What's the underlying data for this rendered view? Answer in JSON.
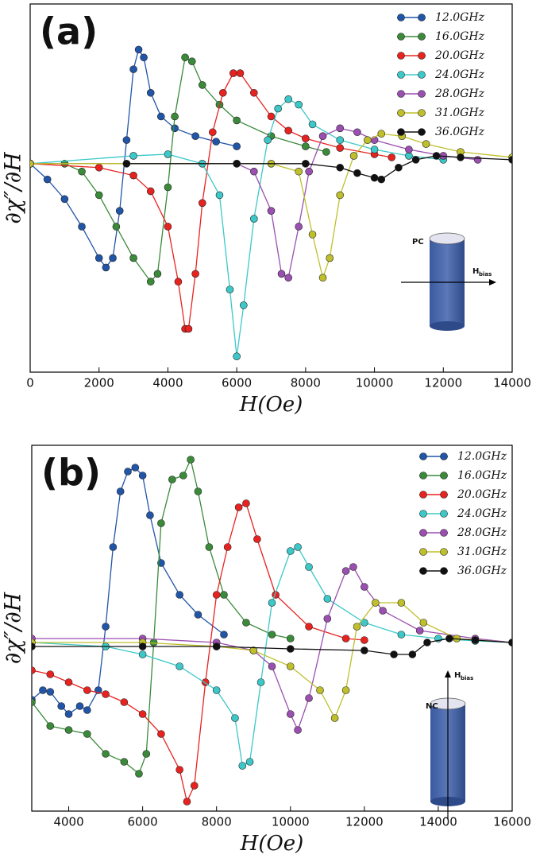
{
  "chart_data": [
    {
      "type": "line",
      "panel_label": "(a)",
      "xlabel": "H(Oe)",
      "ylabel": "∂χ″/∂H",
      "xlim": [
        0,
        14000
      ],
      "xticks": [
        0,
        2000,
        4000,
        6000,
        8000,
        10000,
        12000,
        14000
      ],
      "ylim": [
        -2.65,
        2.03
      ],
      "legend": "upper right",
      "inset_label": "PC",
      "field_label": "H",
      "field_subscript": "bias",
      "series": [
        {
          "name": "12.0GHz",
          "color": "#2155a8",
          "x": [
            0,
            500,
            1000,
            1500,
            2000,
            2200,
            2400,
            2600,
            2800,
            3000,
            3150,
            3300,
            3500,
            3800,
            4200,
            4800,
            5400,
            6000
          ],
          "values": [
            0,
            -0.2,
            -0.45,
            -0.8,
            -1.2,
            -1.32,
            -1.2,
            -0.6,
            0.3,
            1.2,
            1.45,
            1.35,
            0.9,
            0.6,
            0.45,
            0.35,
            0.28,
            0.22
          ]
        },
        {
          "name": "16.0GHz",
          "color": "#3a8a3a",
          "x": [
            0,
            1000,
            1500,
            2000,
            2500,
            3000,
            3500,
            3700,
            4000,
            4200,
            4500,
            4700,
            5000,
            5500,
            6000,
            7000,
            8000,
            8600
          ],
          "values": [
            0,
            0,
            -0.1,
            -0.4,
            -0.8,
            -1.2,
            -1.5,
            -1.4,
            -0.3,
            0.6,
            1.35,
            1.3,
            1.0,
            0.75,
            0.55,
            0.35,
            0.22,
            0.15
          ]
        },
        {
          "name": "20.0GHz",
          "color": "#e8231f",
          "x": [
            0,
            2000,
            3000,
            3500,
            4000,
            4300,
            4500,
            4600,
            4800,
            5000,
            5300,
            5600,
            5900,
            6100,
            6500,
            7000,
            7500,
            8000,
            9000,
            10000,
            10500
          ],
          "values": [
            0,
            -0.05,
            -0.15,
            -0.35,
            -0.8,
            -1.5,
            -2.1,
            -2.1,
            -1.4,
            -0.5,
            0.4,
            0.9,
            1.15,
            1.15,
            0.9,
            0.6,
            0.42,
            0.32,
            0.2,
            0.12,
            0.08
          ]
        },
        {
          "name": "24.0GHz",
          "color": "#3cc8c8",
          "x": [
            0,
            3000,
            4000,
            5000,
            5500,
            5800,
            6000,
            6200,
            6500,
            6900,
            7200,
            7500,
            7800,
            8200,
            9000,
            10000,
            11000,
            12000
          ],
          "values": [
            0,
            0.1,
            0.12,
            0,
            -0.4,
            -1.6,
            -2.45,
            -1.8,
            -0.7,
            0.3,
            0.7,
            0.82,
            0.75,
            0.5,
            0.3,
            0.18,
            0.1,
            0.05
          ]
        },
        {
          "name": "28.0GHz",
          "color": "#9b4fb0",
          "x": [
            0,
            6000,
            6500,
            7000,
            7300,
            7500,
            7800,
            8100,
            8500,
            9000,
            9500,
            10000,
            11000,
            12000,
            13000
          ],
          "values": [
            0,
            0,
            -0.1,
            -0.6,
            -1.4,
            -1.45,
            -0.8,
            -0.1,
            0.35,
            0.45,
            0.4,
            0.3,
            0.18,
            0.1,
            0.05
          ]
        },
        {
          "name": "31.0GHz",
          "color": "#bfbf2c",
          "x": [
            0,
            7000,
            7800,
            8200,
            8500,
            8700,
            9000,
            9400,
            9800,
            10200,
            10800,
            11500,
            12500,
            14000
          ],
          "values": [
            0,
            0,
            -0.1,
            -0.9,
            -1.45,
            -1.2,
            -0.4,
            0.1,
            0.3,
            0.38,
            0.35,
            0.25,
            0.15,
            0.08
          ]
        },
        {
          "name": "36.0GHz",
          "color": "#111111",
          "x": [
            2800,
            6000,
            8000,
            9000,
            9500,
            10000,
            10200,
            10700,
            11200,
            11800,
            12500,
            14000
          ],
          "values": [
            0,
            0,
            0,
            -0.05,
            -0.12,
            -0.18,
            -0.2,
            -0.05,
            0.05,
            0.1,
            0.08,
            0.05
          ]
        }
      ]
    },
    {
      "type": "line",
      "panel_label": "(b)",
      "xlabel": "H(Oe)",
      "ylabel": "∂χ″/∂H",
      "xlim": [
        3000,
        16000
      ],
      "xticks": [
        4000,
        6000,
        8000,
        10000,
        12000,
        14000,
        16000
      ],
      "ylim": [
        -2.12,
        2.48
      ],
      "legend": "upper right",
      "inset_label": "NC",
      "field_label": "H",
      "field_subscript": "bias",
      "series": [
        {
          "name": "12.0GHz",
          "color": "#2155a8",
          "x": [
            3000,
            3300,
            3500,
            3800,
            4000,
            4300,
            4500,
            4800,
            5000,
            5200,
            5400,
            5600,
            5800,
            6000,
            6200,
            6500,
            7000,
            7500,
            8200
          ],
          "values": [
            -0.72,
            -0.6,
            -0.62,
            -0.8,
            -0.9,
            -0.8,
            -0.85,
            -0.6,
            0.2,
            1.2,
            1.9,
            2.15,
            2.2,
            2.1,
            1.6,
            1.0,
            0.6,
            0.35,
            0.1
          ]
        },
        {
          "name": "16.0GHz",
          "color": "#3a8a3a",
          "x": [
            3000,
            3500,
            4000,
            4500,
            5000,
            5500,
            5900,
            6100,
            6300,
            6500,
            6800,
            7100,
            7300,
            7500,
            7800,
            8200,
            8800,
            9500,
            10000
          ],
          "values": [
            -0.75,
            -1.05,
            -1.1,
            -1.15,
            -1.4,
            -1.5,
            -1.65,
            -1.4,
            0,
            1.5,
            2.05,
            2.1,
            2.3,
            1.9,
            1.2,
            0.6,
            0.25,
            0.1,
            0.05
          ]
        },
        {
          "name": "20.0GHz",
          "color": "#e8231f",
          "x": [
            3000,
            3500,
            4000,
            4500,
            5000,
            5500,
            6000,
            6500,
            7000,
            7200,
            7400,
            7700,
            8000,
            8300,
            8600,
            8800,
            9100,
            9600,
            10500,
            11500,
            12000
          ],
          "values": [
            -0.35,
            -0.4,
            -0.5,
            -0.6,
            -0.65,
            -0.75,
            -0.9,
            -1.15,
            -1.6,
            -2.0,
            -1.8,
            -0.5,
            0.6,
            1.2,
            1.7,
            1.75,
            1.3,
            0.6,
            0.2,
            0.05,
            0.03
          ]
        },
        {
          "name": "24.0GHz",
          "color": "#3cc8c8",
          "x": [
            3000,
            5000,
            6000,
            7000,
            8000,
            8500,
            8700,
            8900,
            9200,
            9500,
            10000,
            10200,
            10500,
            11000,
            12000,
            13000,
            14000,
            15000,
            16000
          ],
          "values": [
            0,
            -0.05,
            -0.15,
            -0.3,
            -0.6,
            -0.95,
            -1.55,
            -1.5,
            -0.5,
            0.5,
            1.15,
            1.2,
            0.95,
            0.55,
            0.25,
            0.1,
            0.05,
            0.02,
            0
          ]
        },
        {
          "name": "28.0GHz",
          "color": "#9b4fb0",
          "x": [
            3000,
            6000,
            8000,
            9000,
            9500,
            10000,
            10200,
            10500,
            11000,
            11500,
            11700,
            12000,
            12500,
            13500,
            15000,
            16000
          ],
          "values": [
            0.05,
            0.05,
            0,
            -0.1,
            -0.3,
            -0.9,
            -1.1,
            -0.7,
            0.3,
            0.9,
            0.95,
            0.7,
            0.4,
            0.15,
            0.05,
            0
          ]
        },
        {
          "name": "31.0GHz",
          "color": "#bfbf2c",
          "x": [
            3000,
            6000,
            8000,
            9000,
            10000,
            10800,
            11200,
            11500,
            11800,
            12300,
            13000,
            13600,
            14500,
            16000
          ],
          "values": [
            0,
            0,
            -0.05,
            -0.1,
            -0.3,
            -0.6,
            -0.95,
            -0.6,
            0.2,
            0.5,
            0.5,
            0.25,
            0.05,
            0
          ]
        },
        {
          "name": "36.0GHz",
          "color": "#111111",
          "x": [
            3000,
            6000,
            8000,
            10000,
            12000,
            12800,
            13300,
            13700,
            14300,
            15000,
            16000
          ],
          "values": [
            -0.05,
            -0.05,
            -0.05,
            -0.08,
            -0.1,
            -0.15,
            -0.15,
            0,
            0.05,
            0.03,
            0
          ]
        }
      ]
    }
  ]
}
